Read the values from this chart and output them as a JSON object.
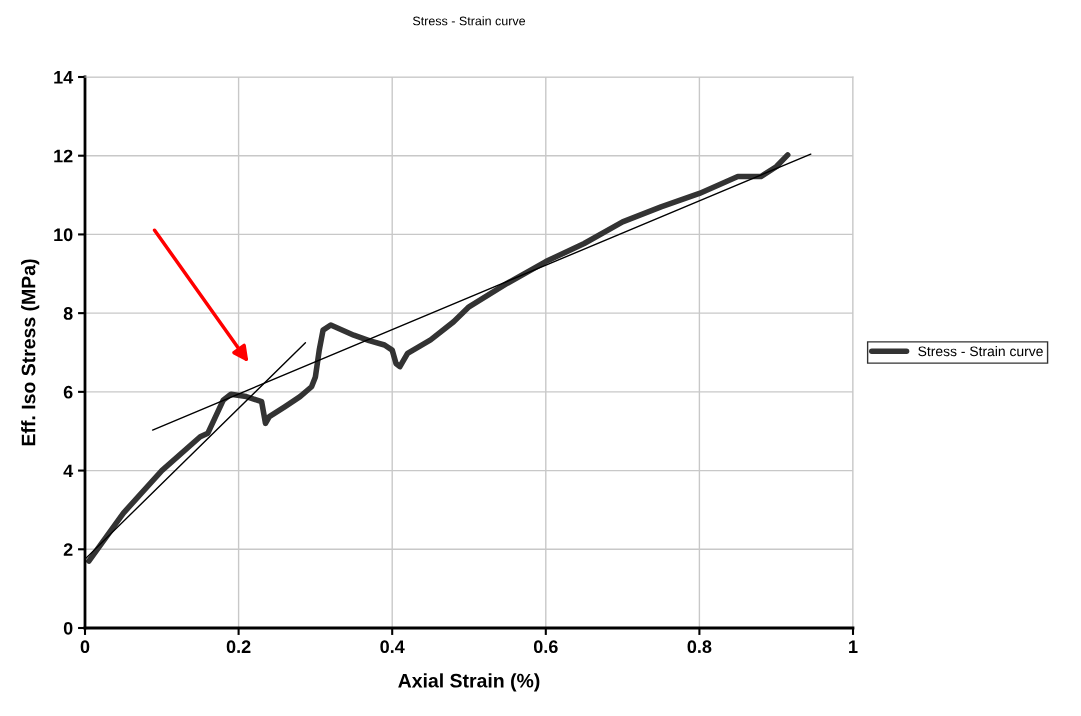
{
  "chart_data": {
    "type": "line",
    "title": "Stress - Strain curve",
    "xlabel": "Axial Strain (%)",
    "ylabel": "Eff. Iso Stress (MPa)",
    "xlim": [
      0,
      1
    ],
    "xticks": [
      0,
      0.2,
      0.4,
      0.6,
      0.8,
      1
    ],
    "ylim": [
      0,
      14
    ],
    "yticks": [
      0,
      2,
      4,
      6,
      8,
      10,
      12,
      14
    ],
    "grid": true,
    "legend": "right",
    "marker": "none",
    "line_style": "solid",
    "series": [
      {
        "name": "Stress - Strain curve",
        "color": "#333333",
        "x": [
          0.005,
          0.05,
          0.1,
          0.15,
          0.16,
          0.18,
          0.19,
          0.21,
          0.23,
          0.235,
          0.24,
          0.26,
          0.28,
          0.295,
          0.3,
          0.305,
          0.31,
          0.32,
          0.35,
          0.37,
          0.39,
          0.4,
          0.405,
          0.41,
          0.42,
          0.45,
          0.48,
          0.5,
          0.55,
          0.6,
          0.65,
          0.7,
          0.75,
          0.8,
          0.85,
          0.88,
          0.9,
          0.915
        ],
        "values": [
          1.7,
          2.92,
          4.0,
          4.86,
          4.95,
          5.79,
          5.94,
          5.88,
          5.75,
          5.2,
          5.37,
          5.62,
          5.88,
          6.13,
          6.38,
          7.06,
          7.57,
          7.7,
          7.44,
          7.3,
          7.19,
          7.06,
          6.72,
          6.64,
          6.98,
          7.32,
          7.78,
          8.16,
          8.76,
          9.31,
          9.77,
          10.32,
          10.7,
          11.04,
          11.47,
          11.47,
          11.72,
          12.02
        ]
      },
      {
        "type": "line",
        "color": "#000000",
        "x": [
          0,
          0.287
        ],
        "values": [
          1.75,
          7.25
        ]
      },
      {
        "type": "line",
        "color": "#000000",
        "x": [
          0.088,
          0.945
        ],
        "values": [
          5.03,
          12.04
        ]
      }
    ]
  }
}
